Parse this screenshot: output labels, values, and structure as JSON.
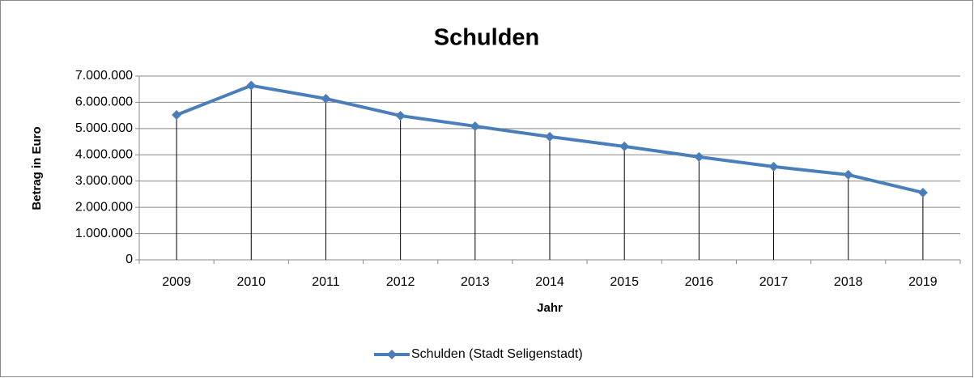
{
  "chart_data": {
    "type": "line",
    "title": "Schulden",
    "x_label": "Jahr",
    "y_label": "Betrag in Euro",
    "categories": [
      "2009",
      "2010",
      "2011",
      "2012",
      "2013",
      "2014",
      "2015",
      "2016",
      "2017",
      "2018",
      "2019"
    ],
    "series": [
      {
        "name": "Schulden (Stadt Seligenstadt)",
        "color": "#4a7ebb",
        "values": [
          5520000,
          6640000,
          6140000,
          5490000,
          5090000,
          4690000,
          4320000,
          3920000,
          3550000,
          3240000,
          2560000
        ]
      }
    ],
    "ylim": [
      0,
      7000000
    ],
    "yticks": [
      {
        "value": 0,
        "label": "0"
      },
      {
        "value": 1000000,
        "label": "1.000.000"
      },
      {
        "value": 2000000,
        "label": "2.000.000"
      },
      {
        "value": 3000000,
        "label": "3.000.000"
      },
      {
        "value": 4000000,
        "label": "4.000.000"
      },
      {
        "value": 5000000,
        "label": "5.000.000"
      },
      {
        "value": 6000000,
        "label": "6.000.000"
      },
      {
        "value": 7000000,
        "label": "7.000.000"
      }
    ],
    "grid": true,
    "drop_lines": true,
    "legend": "bottom"
  }
}
